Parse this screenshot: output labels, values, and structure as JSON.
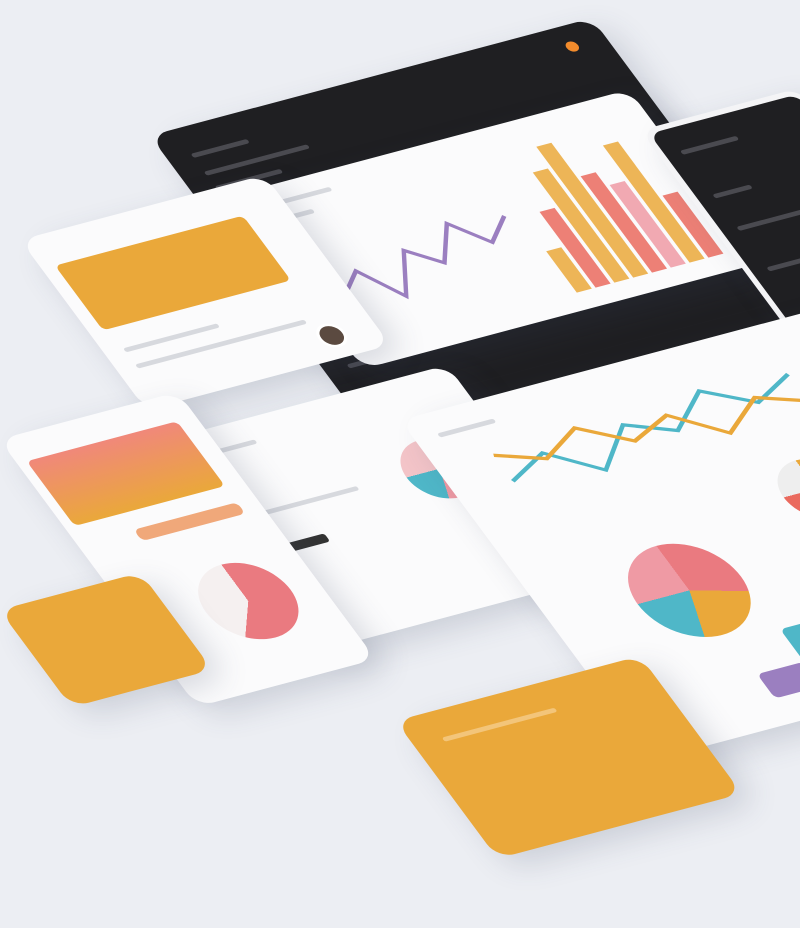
{
  "colors": {
    "background": "#eceef3",
    "dark": "#1f1f22",
    "orange": "#eaa83a",
    "coral": "#ea6a5e",
    "pink": "#ef9aa4",
    "teal": "#4fb7c8",
    "purple": "#9b7fc0",
    "white": "#fbfbfc"
  },
  "icons": [
    "avatar",
    "pie-chart-icon",
    "bar-chart-icon",
    "line-chart-icon",
    "status-dot-icon"
  ],
  "chart_data": [
    {
      "type": "bar",
      "values": [
        30,
        55,
        80,
        95,
        70,
        60,
        85,
        45
      ]
    },
    {
      "type": "line",
      "values": [
        40,
        55,
        30,
        60,
        45,
        70,
        50,
        65
      ]
    },
    {
      "type": "pie",
      "values": [
        30,
        25,
        20,
        25
      ]
    }
  ]
}
